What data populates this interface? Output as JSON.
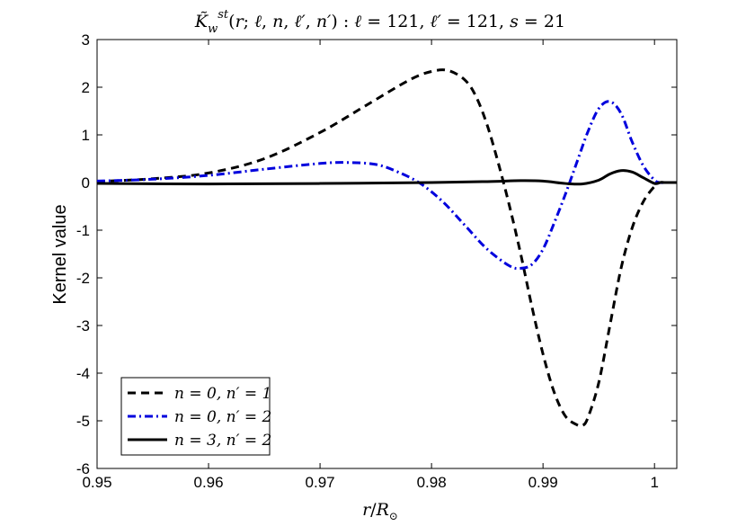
{
  "chart_data": {
    "type": "line",
    "title": "K̃_w^st(r; ℓ, n, ℓ′, n′) : ℓ = 121, ℓ′ = 121, s = 21",
    "xlabel": "r/R⊙",
    "ylabel": "Kernel value",
    "xlim": [
      0.95,
      1.002
    ],
    "ylim": [
      -6,
      3
    ],
    "xticks": [
      0.95,
      0.96,
      0.97,
      0.98,
      0.99,
      1
    ],
    "xtick_labels": [
      "0.95",
      "0.96",
      "0.97",
      "0.98",
      "0.99",
      "1"
    ],
    "yticks": [
      -6,
      -5,
      -4,
      -3,
      -2,
      -1,
      0,
      1,
      2,
      3
    ],
    "ytick_labels": [
      "-6",
      "-5",
      "-4",
      "-3",
      "-2",
      "-1",
      "0",
      "1",
      "2",
      "3"
    ],
    "grid": false,
    "legend_position": "bottom-left",
    "series": [
      {
        "name": "n = 0, n′ = 1",
        "color": "#000000",
        "style": "dashed",
        "x": [
          0.95,
          0.955,
          0.96,
          0.965,
          0.97,
          0.974,
          0.978,
          0.98,
          0.9815,
          0.983,
          0.984,
          0.985,
          0.986,
          0.987,
          0.988,
          0.989,
          0.99,
          0.991,
          0.992,
          0.993,
          0.9935,
          0.994,
          0.995,
          0.996,
          0.997,
          0.998,
          0.999,
          1.0,
          1.0005,
          1.001,
          1.002
        ],
        "y": [
          0.02,
          0.08,
          0.2,
          0.5,
          1.05,
          1.6,
          2.15,
          2.33,
          2.35,
          2.15,
          1.8,
          1.2,
          0.4,
          -0.5,
          -1.5,
          -2.6,
          -3.6,
          -4.4,
          -4.9,
          -5.08,
          -5.1,
          -4.95,
          -4.2,
          -3.0,
          -1.8,
          -0.95,
          -0.4,
          -0.08,
          0.0,
          0.0,
          0.0
        ]
      },
      {
        "name": "n = 0, n′ = 2",
        "color": "#0000dd",
        "style": "dashdot",
        "x": [
          0.95,
          0.955,
          0.96,
          0.965,
          0.97,
          0.9725,
          0.975,
          0.977,
          0.979,
          0.981,
          0.983,
          0.985,
          0.987,
          0.988,
          0.989,
          0.99,
          0.991,
          0.992,
          0.993,
          0.994,
          0.995,
          0.996,
          0.997,
          0.998,
          0.999,
          1.0,
          1.0005,
          1.001,
          1.002
        ],
        "y": [
          0.03,
          0.07,
          0.15,
          0.28,
          0.4,
          0.42,
          0.38,
          0.22,
          -0.02,
          -0.4,
          -0.9,
          -1.4,
          -1.75,
          -1.8,
          -1.72,
          -1.4,
          -0.85,
          -0.25,
          0.4,
          1.05,
          1.55,
          1.7,
          1.45,
          0.85,
          0.35,
          0.05,
          0.0,
          0.0,
          0.0
        ]
      },
      {
        "name": "n = 3, n′ = 2",
        "color": "#000000",
        "style": "solid",
        "x": [
          0.95,
          0.96,
          0.97,
          0.98,
          0.985,
          0.988,
          0.99,
          0.992,
          0.9935,
          0.995,
          0.996,
          0.997,
          0.998,
          0.999,
          1.0,
          1.0005,
          1.001,
          1.002
        ],
        "y": [
          -0.02,
          -0.03,
          -0.02,
          0.0,
          0.02,
          0.04,
          0.03,
          -0.02,
          -0.03,
          0.05,
          0.18,
          0.25,
          0.22,
          0.1,
          -0.02,
          0.0,
          0.0,
          0.0
        ]
      }
    ]
  }
}
